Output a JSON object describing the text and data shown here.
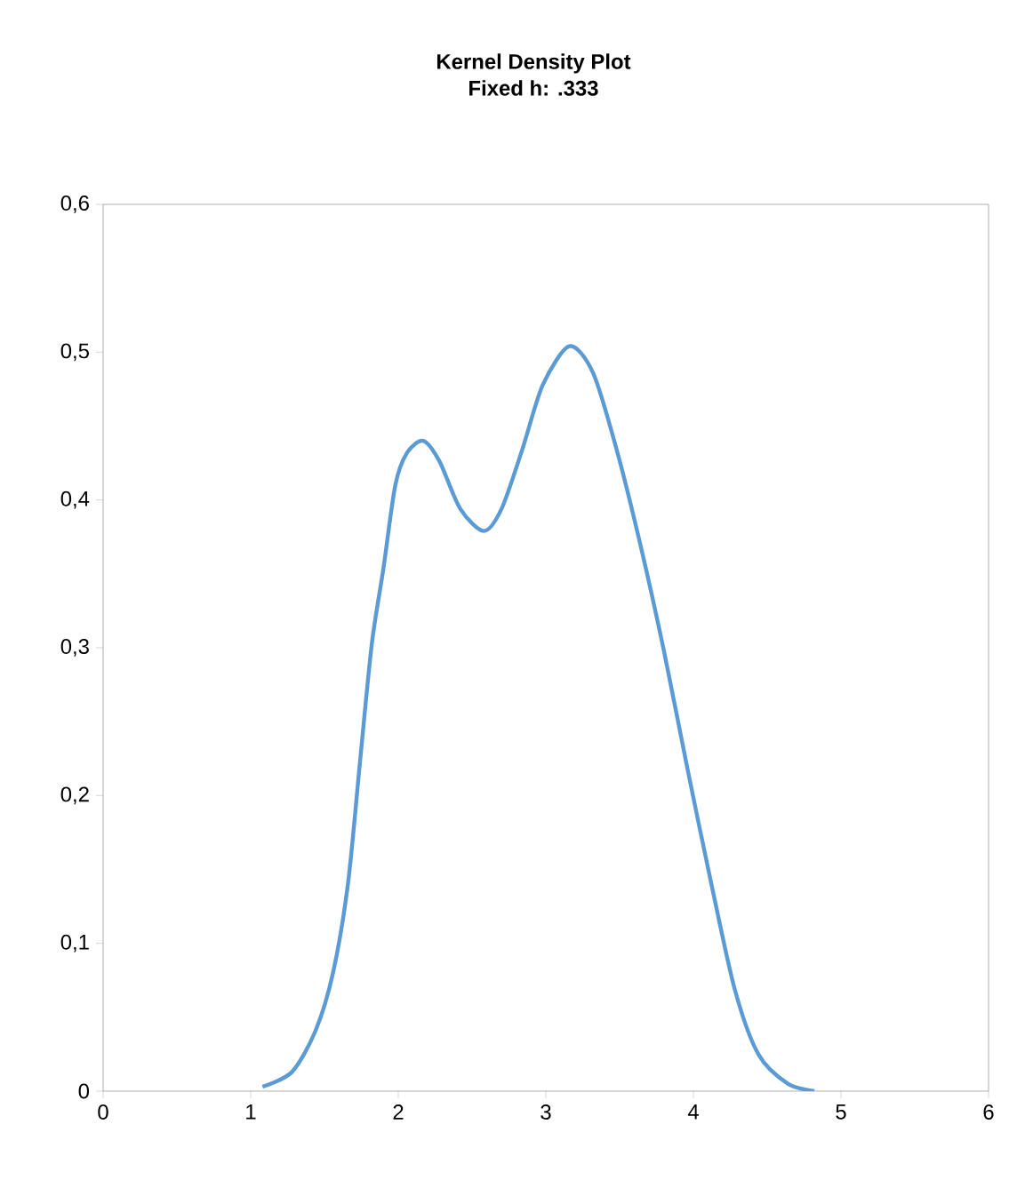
{
  "chart_data": {
    "type": "line",
    "title": "Kernel Density Plot",
    "subtitle": "Fixed h: .333",
    "xlim": [
      0,
      6
    ],
    "xticks": [
      0,
      1,
      2,
      3,
      4,
      5,
      6
    ],
    "ylim": [
      0,
      0.6
    ],
    "yticks": [
      0,
      {
        "value": 0.1,
        "label": "0,1"
      },
      {
        "value": 0.2,
        "label": "0,2"
      },
      {
        "value": 0.3,
        "label": "0,3"
      },
      {
        "value": 0.4,
        "label": "0,4"
      },
      {
        "value": 0.5,
        "label": "0,5"
      },
      {
        "value": 0.6,
        "label": "0,6"
      }
    ],
    "grid": false,
    "marker": "none",
    "line_style": "solid",
    "series": [
      {
        "color": "#5b9bd5",
        "x": [
          1.08,
          1.28,
          1.44,
          1.56,
          1.66,
          1.74,
          1.82,
          1.9,
          1.98,
          2.06,
          2.17,
          2.28,
          2.42,
          2.58,
          2.7,
          2.84,
          2.98,
          3.16,
          3.32,
          3.48,
          3.64,
          3.8,
          3.96,
          4.12,
          4.28,
          4.44,
          4.64,
          4.82
        ],
        "values": [
          0.003,
          0.013,
          0.041,
          0.081,
          0.141,
          0.222,
          0.302,
          0.354,
          0.41,
          0.432,
          0.44,
          0.426,
          0.394,
          0.379,
          0.394,
          0.434,
          0.478,
          0.504,
          0.486,
          0.434,
          0.37,
          0.298,
          0.218,
          0.141,
          0.069,
          0.025,
          0.005,
          0.0
        ]
      }
    ]
  }
}
